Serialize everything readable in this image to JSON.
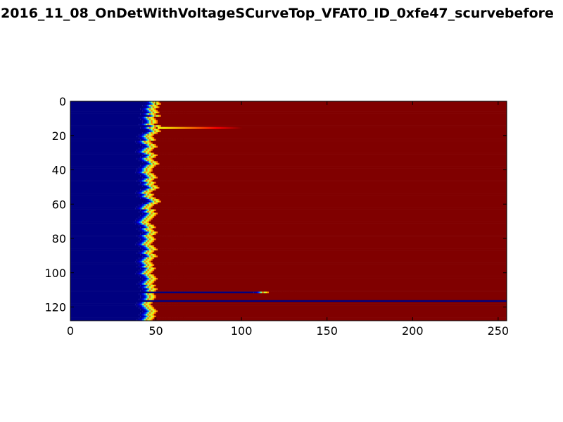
{
  "chart_data": {
    "type": "heatmap",
    "title": "2016_11_08_OnDetWithVoltageSCurveTop_VFAT0_ID_0xfe47_scurvebefore",
    "xlabel": "",
    "ylabel": "",
    "xlim": [
      0,
      255
    ],
    "ylim": [
      128,
      0
    ],
    "x_ticks": [
      0,
      50,
      100,
      150,
      200,
      250
    ],
    "y_ticks": [
      0,
      20,
      40,
      60,
      80,
      100,
      120
    ],
    "colormap": "jet",
    "value_range": [
      0,
      1
    ],
    "grid": false,
    "rows": 128,
    "description_values": {
      "low_value_color": "#00007f",
      "high_value_color": "#7f0000"
    },
    "turn_on_threshold_by_row": [
      49,
      50,
      48,
      49,
      47,
      48,
      49,
      47,
      50,
      46,
      47,
      48,
      48,
      46,
      50,
      47,
      49,
      50,
      48,
      46,
      45,
      46,
      47,
      44,
      45,
      47,
      48,
      46,
      45,
      44,
      46,
      48,
      47,
      45,
      46,
      48,
      49,
      47,
      46,
      45,
      45,
      44,
      46,
      47,
      48,
      46,
      45,
      47,
      46,
      48,
      49,
      47,
      45,
      44,
      46,
      45,
      47,
      49,
      50,
      48,
      46,
      45,
      44,
      47,
      46,
      48,
      47,
      46,
      45,
      44,
      43,
      44,
      46,
      47,
      45,
      46,
      48,
      47,
      45,
      46,
      47,
      46,
      45,
      44,
      46,
      47,
      48,
      46,
      45,
      47,
      48,
      46,
      45,
      44,
      45,
      46,
      45,
      47,
      46,
      45,
      44,
      46,
      47,
      48,
      47,
      46,
      45,
      47,
      46,
      48,
      47,
      46,
      46,
      47,
      47,
      46,
      46,
      45,
      44,
      45,
      46,
      47,
      48,
      47,
      46,
      47,
      46,
      45
    ],
    "special_rows": [
      {
        "row": 15,
        "tail_to": 100,
        "peak_at": 51
      },
      {
        "row": 111,
        "mode": "shifted",
        "threshold": 113
      },
      {
        "row": 116,
        "mode": "dead"
      },
      {
        "row": 128,
        "mode": "dead"
      }
    ]
  },
  "colors": {
    "axes_frame": "#000000",
    "background": "#ffffff"
  }
}
